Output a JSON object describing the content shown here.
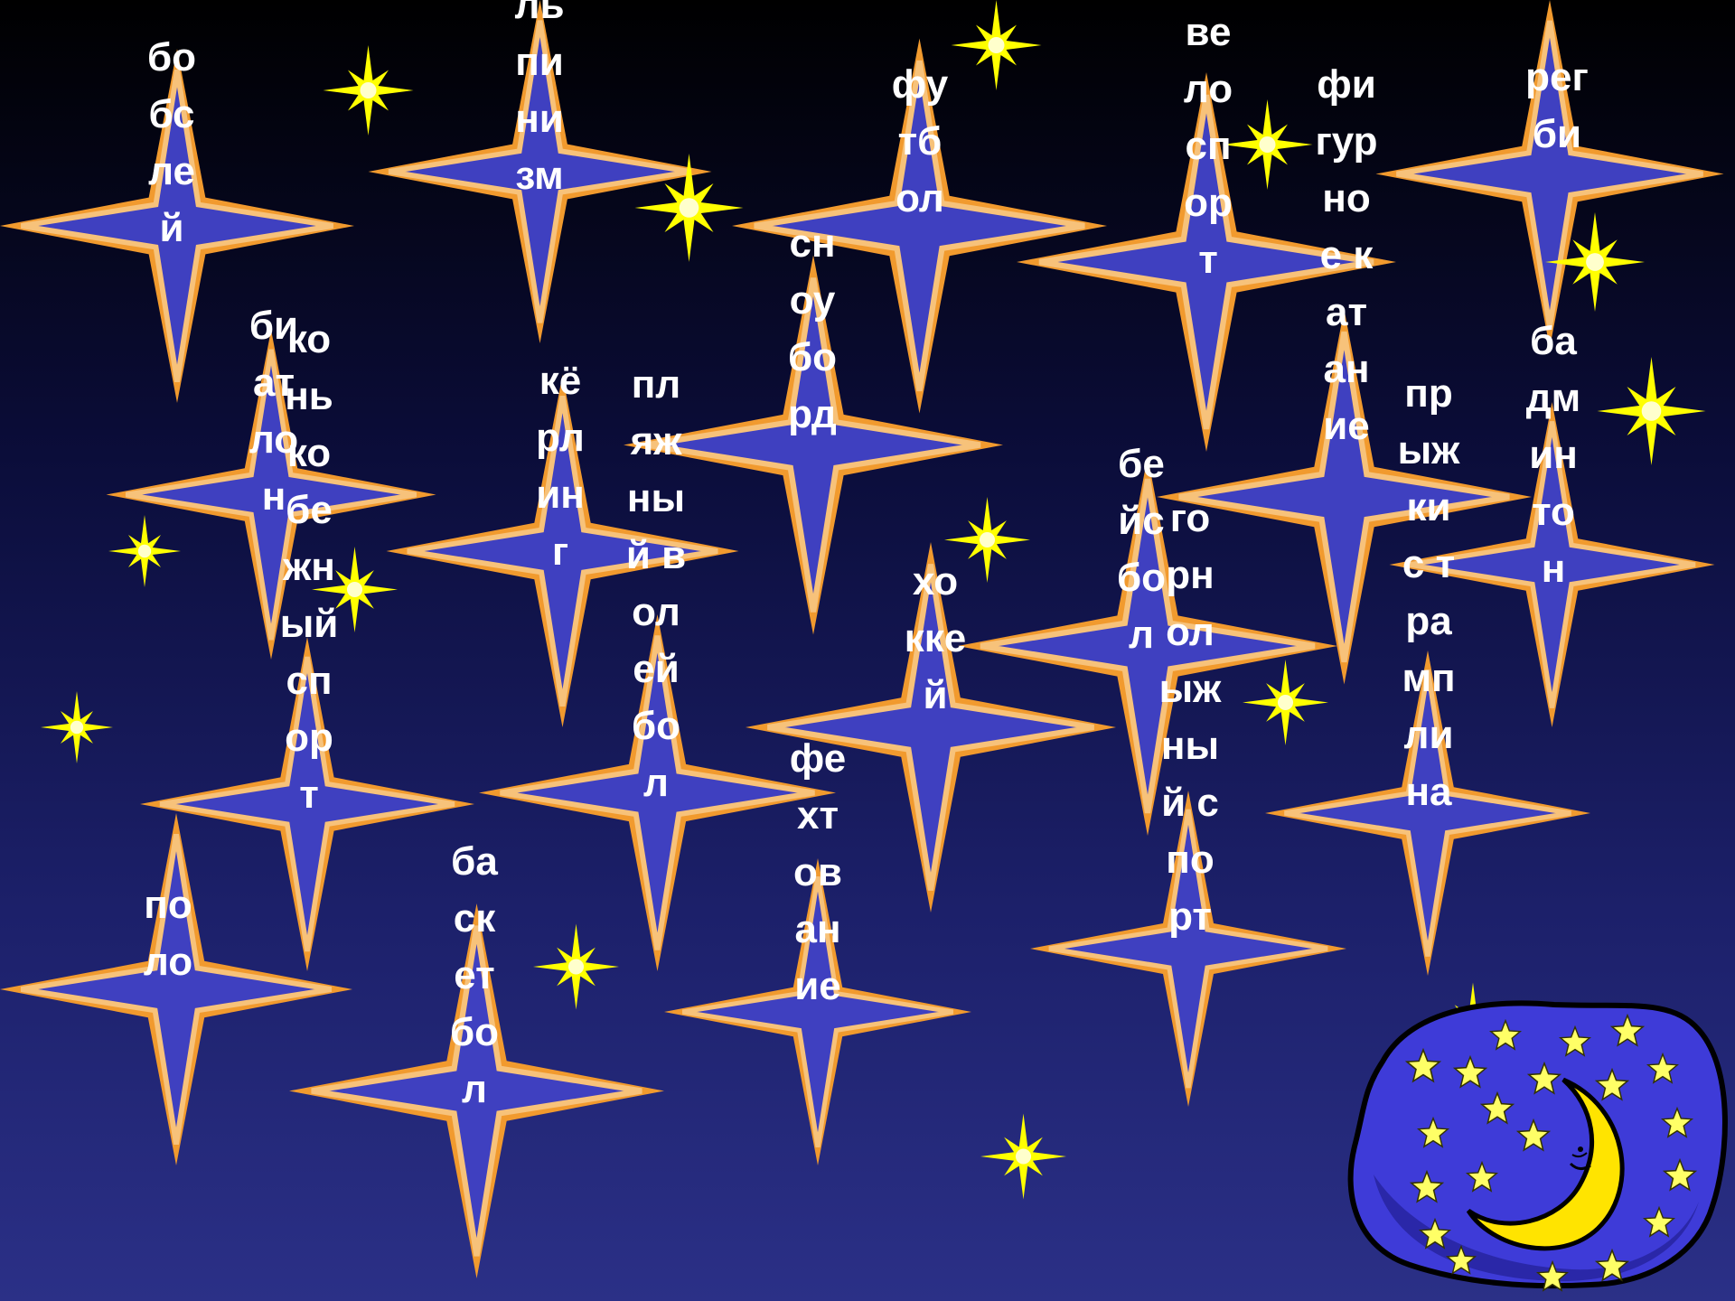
{
  "background": {
    "top_color": "#000000",
    "bottom_color": "#2b3087"
  },
  "colors": {
    "big_star_fill": "#3f40c0",
    "big_star_outline": "#f19a2e",
    "small_star": "#ffff00"
  },
  "icons": {
    "corner_picture": "crescent-moon-night-sky-icon"
  },
  "words": [
    {
      "id": "bobsley",
      "text": "бобслей"
    },
    {
      "id": "alpinizm",
      "text": "льпинизм"
    },
    {
      "id": "futbol",
      "text": "футбол"
    },
    {
      "id": "velosport",
      "text": "велоспорт"
    },
    {
      "id": "figurnoe-katanie",
      "text": "фигурное катание"
    },
    {
      "id": "regbi",
      "text": "регби"
    },
    {
      "id": "biatlon",
      "text": "биатлон"
    },
    {
      "id": "konkobezhny-sport",
      "text": "конькобежный спорт"
    },
    {
      "id": "kerling",
      "text": "кёрлинг"
    },
    {
      "id": "plyazhny-voleybol",
      "text": "пляжный волейбол"
    },
    {
      "id": "snoubord",
      "text": "сноуборд"
    },
    {
      "id": "hokkey",
      "text": "хоккей"
    },
    {
      "id": "beysbol",
      "text": "бейсбол"
    },
    {
      "id": "gornolyzhny-sport",
      "text": "горнолыжный спорт"
    },
    {
      "id": "pryzhki-s-tramplina",
      "text": "прыжки с трамплина"
    },
    {
      "id": "badminton",
      "text": "бадминтон"
    },
    {
      "id": "polo",
      "text": "поло"
    },
    {
      "id": "basketbol",
      "text": "баскетбол"
    },
    {
      "id": "fehtovanie",
      "text": "фехтование"
    }
  ]
}
